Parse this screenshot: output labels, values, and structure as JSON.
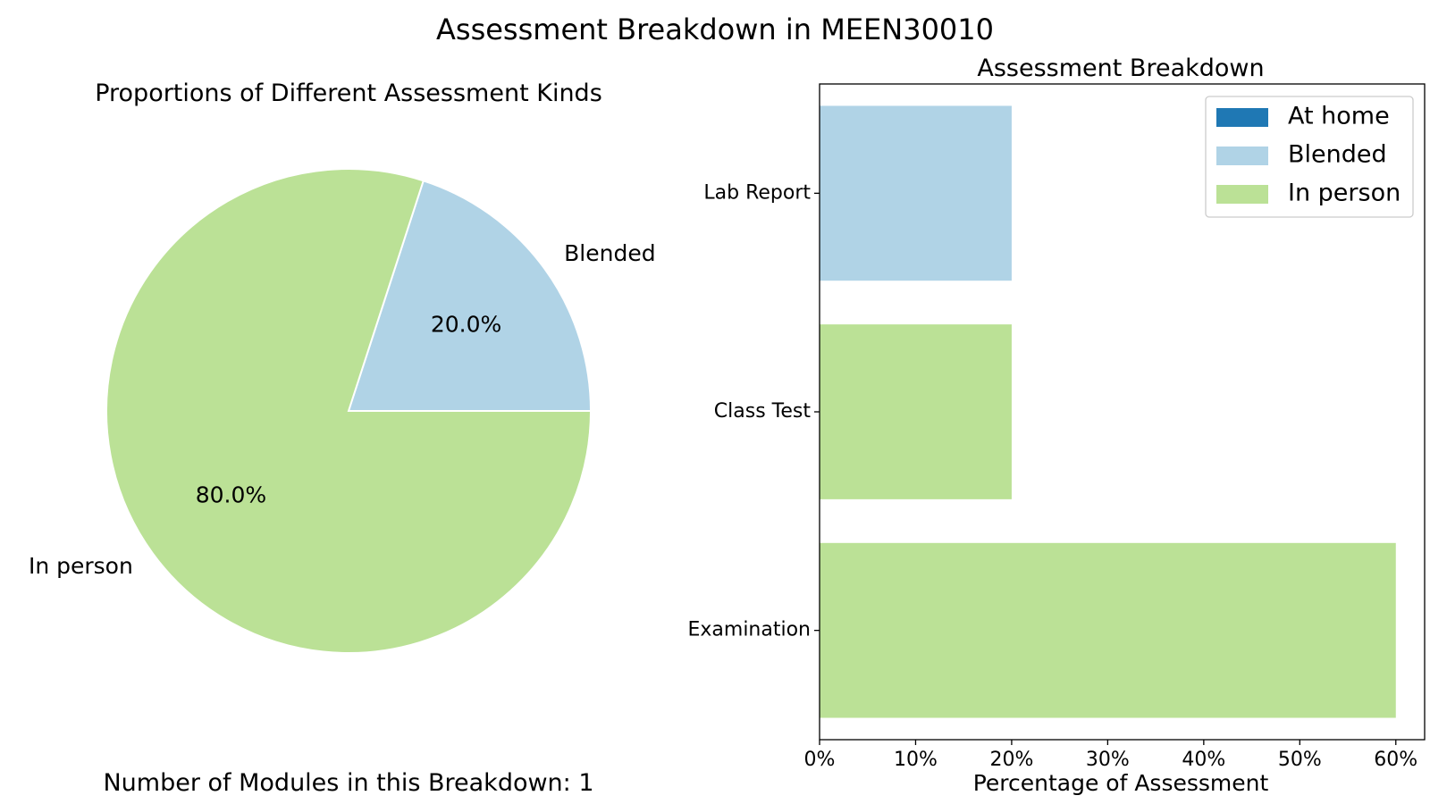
{
  "figure": {
    "suptitle": "Assessment Breakdown in MEEN30010",
    "footer": "Number of Modules in this Breakdown: 1"
  },
  "colors": {
    "at_home": "#1f78b4",
    "blended": "#b0d3e6",
    "in_person": "#bbe196"
  },
  "chart_data": [
    {
      "type": "pie",
      "title": "Proportions of Different Assessment Kinds",
      "slices": [
        {
          "label": "Blended",
          "value": 20.0,
          "pct_label": "20.0%",
          "color": "#b0d3e6"
        },
        {
          "label": "In person",
          "value": 80.0,
          "pct_label": "80.0%",
          "color": "#bbe196"
        }
      ]
    },
    {
      "type": "bar",
      "orientation": "horizontal",
      "title": "Assessment Breakdown",
      "xlabel": "Percentage of Assessment",
      "ylabel": "",
      "xlim": [
        0,
        63
      ],
      "xticks": [
        0,
        10,
        20,
        30,
        40,
        50,
        60
      ],
      "xtick_labels": [
        "0%",
        "10%",
        "20%",
        "30%",
        "40%",
        "50%",
        "60%"
      ],
      "categories": [
        "Lab Report",
        "Class Test",
        "Examination"
      ],
      "series": [
        {
          "name": "At home",
          "values": [
            0,
            0,
            0
          ],
          "color": "#1f78b4"
        },
        {
          "name": "Blended",
          "values": [
            20,
            0,
            0
          ],
          "color": "#b0d3e6"
        },
        {
          "name": "In person",
          "values": [
            0,
            20,
            60
          ],
          "color": "#bbe196"
        }
      ],
      "legend": {
        "placement": "top-right",
        "entries": [
          "At home",
          "Blended",
          "In person"
        ]
      },
      "grid": false
    }
  ]
}
